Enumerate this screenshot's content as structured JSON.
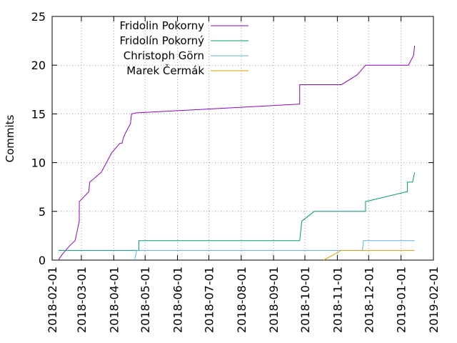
{
  "chart_data": {
    "type": "line",
    "title": "",
    "xlabel": "",
    "ylabel": "Commits",
    "x_type": "date",
    "xlim": [
      "2018-02-01",
      "2019-02-01"
    ],
    "ylim": [
      0,
      25
    ],
    "x_ticks": [
      "2018-02-01",
      "2018-03-01",
      "2018-04-01",
      "2018-05-01",
      "2018-06-01",
      "2018-07-01",
      "2018-08-01",
      "2018-09-01",
      "2018-10-01",
      "2018-11-01",
      "2018-12-01",
      "2019-01-01",
      "2019-02-01"
    ],
    "y_ticks": [
      0,
      5,
      10,
      15,
      20,
      25
    ],
    "grid": "dotted, horizontal and vertical",
    "legend_position": "top-left",
    "series": [
      {
        "name": "Fridolin Pokorny",
        "color": "#9400d3",
        "points": [
          [
            "2018-02-07",
            0
          ],
          [
            "2018-02-10",
            0.5
          ],
          [
            "2018-02-14",
            1
          ],
          [
            "2018-02-18",
            1.5
          ],
          [
            "2018-02-23",
            2
          ],
          [
            "2018-02-25",
            3
          ],
          [
            "2018-02-27",
            4
          ],
          [
            "2018-02-27",
            6
          ],
          [
            "2018-03-08",
            7
          ],
          [
            "2018-03-09",
            8
          ],
          [
            "2018-03-20",
            9
          ],
          [
            "2018-03-30",
            11
          ],
          [
            "2018-04-07",
            12
          ],
          [
            "2018-04-09",
            12
          ],
          [
            "2018-04-10",
            12.5
          ],
          [
            "2018-04-12",
            13
          ],
          [
            "2018-04-17",
            14
          ],
          [
            "2018-04-18",
            15
          ],
          [
            "2018-04-22",
            15.1
          ],
          [
            "2018-09-25",
            16
          ],
          [
            "2018-09-26",
            16
          ],
          [
            "2018-09-26",
            18
          ],
          [
            "2018-11-05",
            18
          ],
          [
            "2018-11-20",
            19
          ],
          [
            "2018-11-28",
            20
          ],
          [
            "2019-01-08",
            20
          ],
          [
            "2019-01-09",
            20.2
          ],
          [
            "2019-01-13",
            21
          ],
          [
            "2019-01-14",
            22
          ]
        ]
      },
      {
        "name": "Fridolín Pokorný",
        "color": "#009e73",
        "points": [
          [
            "2018-02-07",
            1
          ],
          [
            "2018-04-25",
            1
          ],
          [
            "2018-04-25",
            2
          ],
          [
            "2018-09-26",
            2
          ],
          [
            "2018-09-28",
            4
          ],
          [
            "2018-10-10",
            5
          ],
          [
            "2018-11-28",
            5
          ],
          [
            "2018-11-28",
            6
          ],
          [
            "2019-01-06",
            7
          ],
          [
            "2019-01-07",
            7
          ],
          [
            "2019-01-07",
            8
          ],
          [
            "2019-01-12",
            8
          ],
          [
            "2019-01-14",
            9
          ]
        ]
      },
      {
        "name": "Christoph Görn",
        "color": "#56b4e9",
        "points": [
          [
            "2018-04-21",
            0
          ],
          [
            "2018-04-23",
            1
          ],
          [
            "2018-11-25",
            1
          ],
          [
            "2018-11-26",
            2
          ],
          [
            "2019-01-14",
            2
          ]
        ]
      },
      {
        "name": "Marek Čermák",
        "color": "#e69f00",
        "points": [
          [
            "2018-10-19",
            0
          ],
          [
            "2018-11-05",
            1
          ],
          [
            "2019-01-14",
            1
          ]
        ]
      }
    ]
  }
}
